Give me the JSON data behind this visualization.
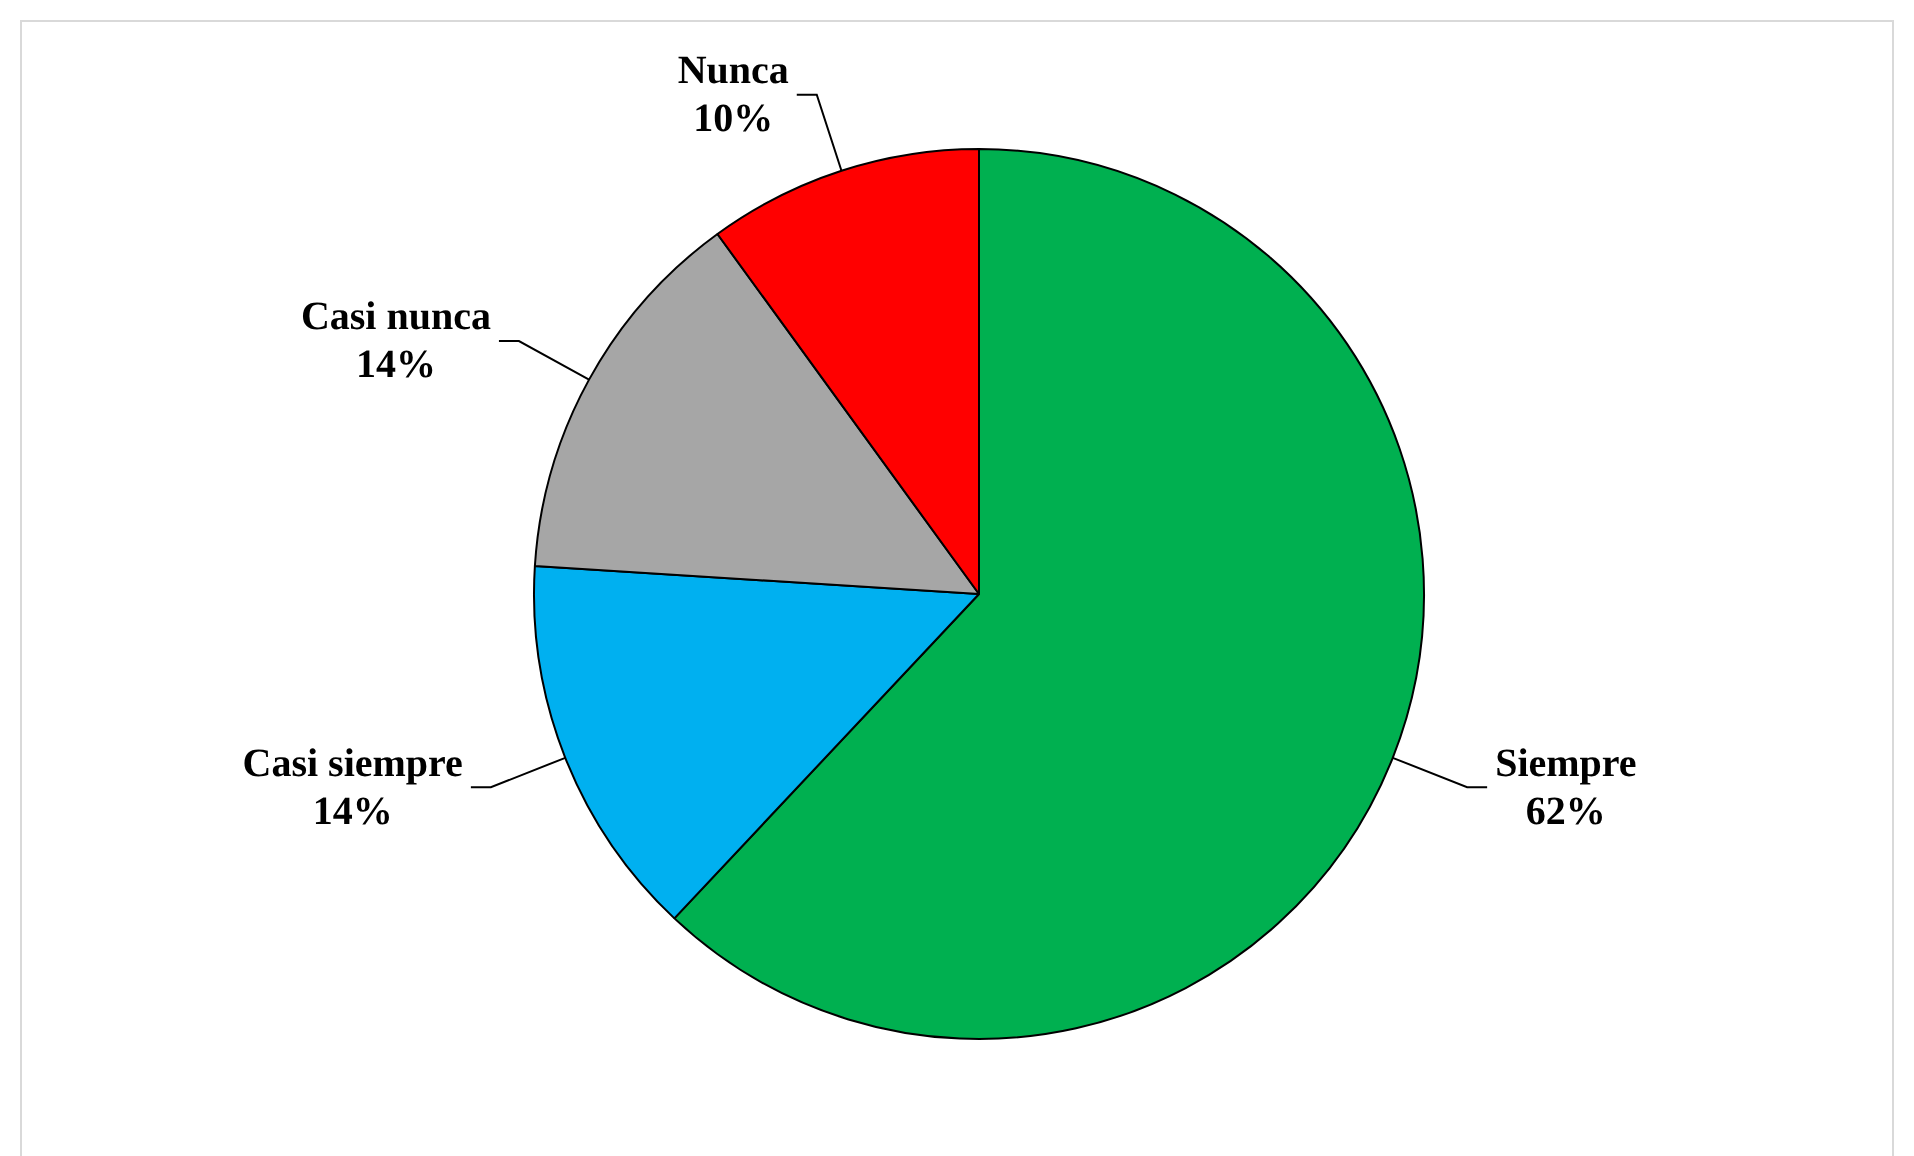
{
  "chart_data": {
    "type": "pie",
    "categories": [
      "Siempre",
      "Casi siempre",
      "Casi nunca",
      "Nunca"
    ],
    "values": [
      62,
      14,
      14,
      10
    ],
    "colors": [
      "#00b050",
      "#00b0f0",
      "#a6a6a6",
      "#ff0000"
    ],
    "value_labels": [
      "62%",
      "14%",
      "14%",
      "10%"
    ],
    "legend": false
  }
}
